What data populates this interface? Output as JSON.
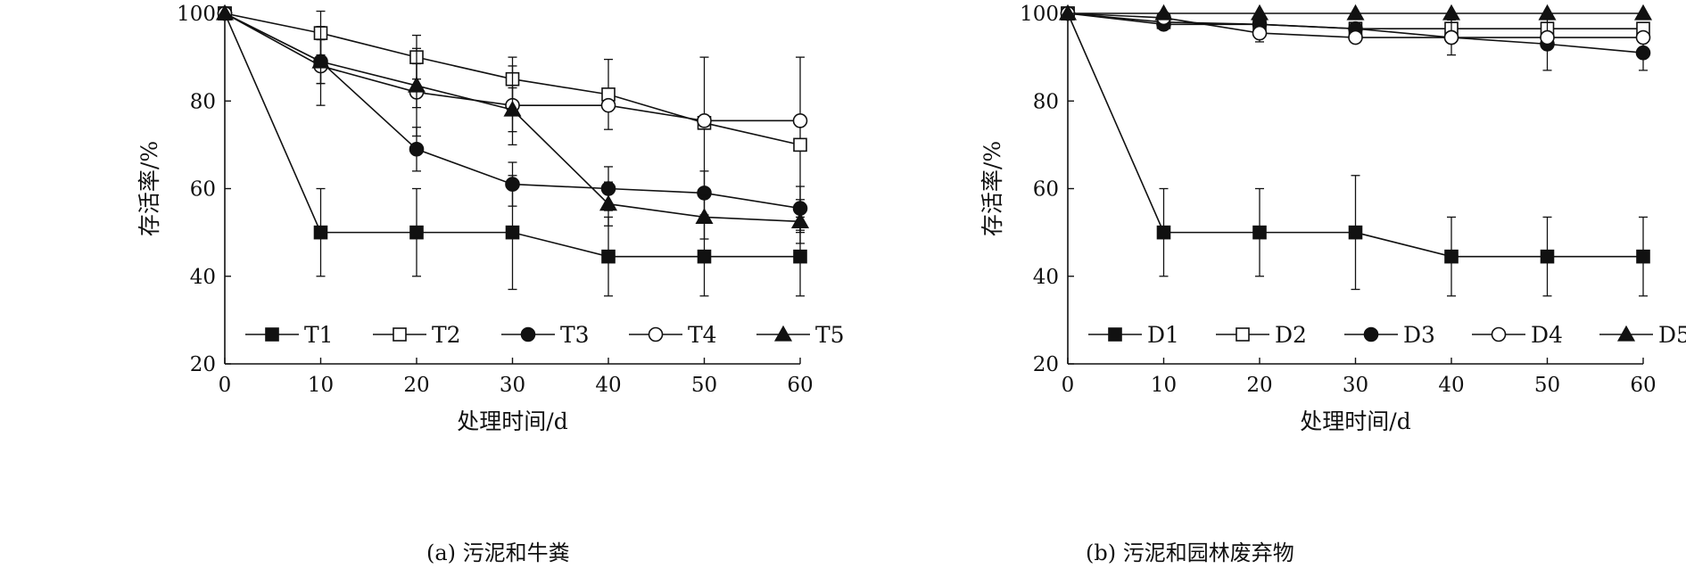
{
  "chart_data": [
    {
      "type": "line",
      "caption": "(a) 污泥和牛粪",
      "xlabel": "处理时间/d",
      "ylabel": "存活率/%",
      "x": [
        0,
        10,
        20,
        30,
        40,
        50,
        60
      ],
      "xlim": [
        0,
        60
      ],
      "ylim": [
        20,
        100
      ],
      "xticks": [
        0,
        10,
        20,
        30,
        40,
        50,
        60
      ],
      "yticks": [
        20,
        40,
        60,
        80,
        100
      ],
      "grid": false,
      "legend_position": "bottom",
      "series": [
        {
          "name": "T1",
          "marker": "square-filled",
          "values": [
            100,
            50,
            50,
            50,
            44.5,
            44.5,
            44.5
          ],
          "err": [
            0,
            10,
            10,
            13,
            9,
            9,
            9
          ]
        },
        {
          "name": "T2",
          "marker": "square-open",
          "values": [
            100,
            95.5,
            90,
            85,
            81.5,
            75,
            70
          ],
          "err": [
            0,
            5,
            5,
            5,
            8,
            15,
            20
          ]
        },
        {
          "name": "T3",
          "marker": "circle-filled",
          "values": [
            100,
            89,
            69,
            61,
            60,
            59,
            55.5
          ],
          "err": [
            0,
            5,
            5,
            5,
            5,
            5,
            5
          ]
        },
        {
          "name": "T4",
          "marker": "circle-open",
          "values": [
            100,
            88,
            82,
            79,
            79,
            75.5,
            75.5
          ],
          "err": [
            0,
            9,
            10,
            9,
            0,
            0,
            0
          ]
        },
        {
          "name": "T5",
          "marker": "triangle-filled",
          "values": [
            100,
            89,
            83.5,
            78,
            56.5,
            53.5,
            52.5
          ],
          "err": [
            0,
            5,
            5,
            5,
            5,
            5,
            5
          ]
        }
      ]
    },
    {
      "type": "line",
      "caption": "(b) 污泥和园林废弃物",
      "xlabel": "处理时间/d",
      "ylabel": "存活率/%",
      "x": [
        0,
        10,
        20,
        30,
        40,
        50,
        60
      ],
      "xlim": [
        0,
        60
      ],
      "ylim": [
        20,
        100
      ],
      "xticks": [
        0,
        10,
        20,
        30,
        40,
        50,
        60
      ],
      "yticks": [
        20,
        40,
        60,
        80,
        100
      ],
      "grid": false,
      "legend_position": "bottom",
      "series": [
        {
          "name": "D1",
          "marker": "square-filled",
          "values": [
            100,
            50,
            50,
            50,
            44.5,
            44.5,
            44.5
          ],
          "err": [
            0,
            10,
            10,
            13,
            9,
            9,
            9
          ]
        },
        {
          "name": "D2",
          "marker": "square-open",
          "values": [
            100,
            98,
            97.5,
            96.5,
            96.5,
            96.5,
            96.5
          ],
          "err": [
            0,
            0,
            0,
            0,
            0,
            0,
            0
          ]
        },
        {
          "name": "D3",
          "marker": "circle-filled",
          "values": [
            100,
            97.5,
            97.5,
            96.5,
            94.5,
            93,
            91
          ],
          "err": [
            0,
            0,
            0,
            0,
            0,
            6,
            4
          ]
        },
        {
          "name": "D4",
          "marker": "circle-open",
          "values": [
            100,
            99,
            95.5,
            94.5,
            94.5,
            94.5,
            94.5
          ],
          "err": [
            0,
            0,
            2,
            0,
            4,
            0,
            0
          ]
        },
        {
          "name": "D5",
          "marker": "triangle-filled",
          "values": [
            100,
            100,
            100,
            100,
            100,
            100,
            100
          ],
          "err": [
            0,
            0,
            0,
            0,
            0,
            0,
            0
          ]
        }
      ]
    }
  ]
}
